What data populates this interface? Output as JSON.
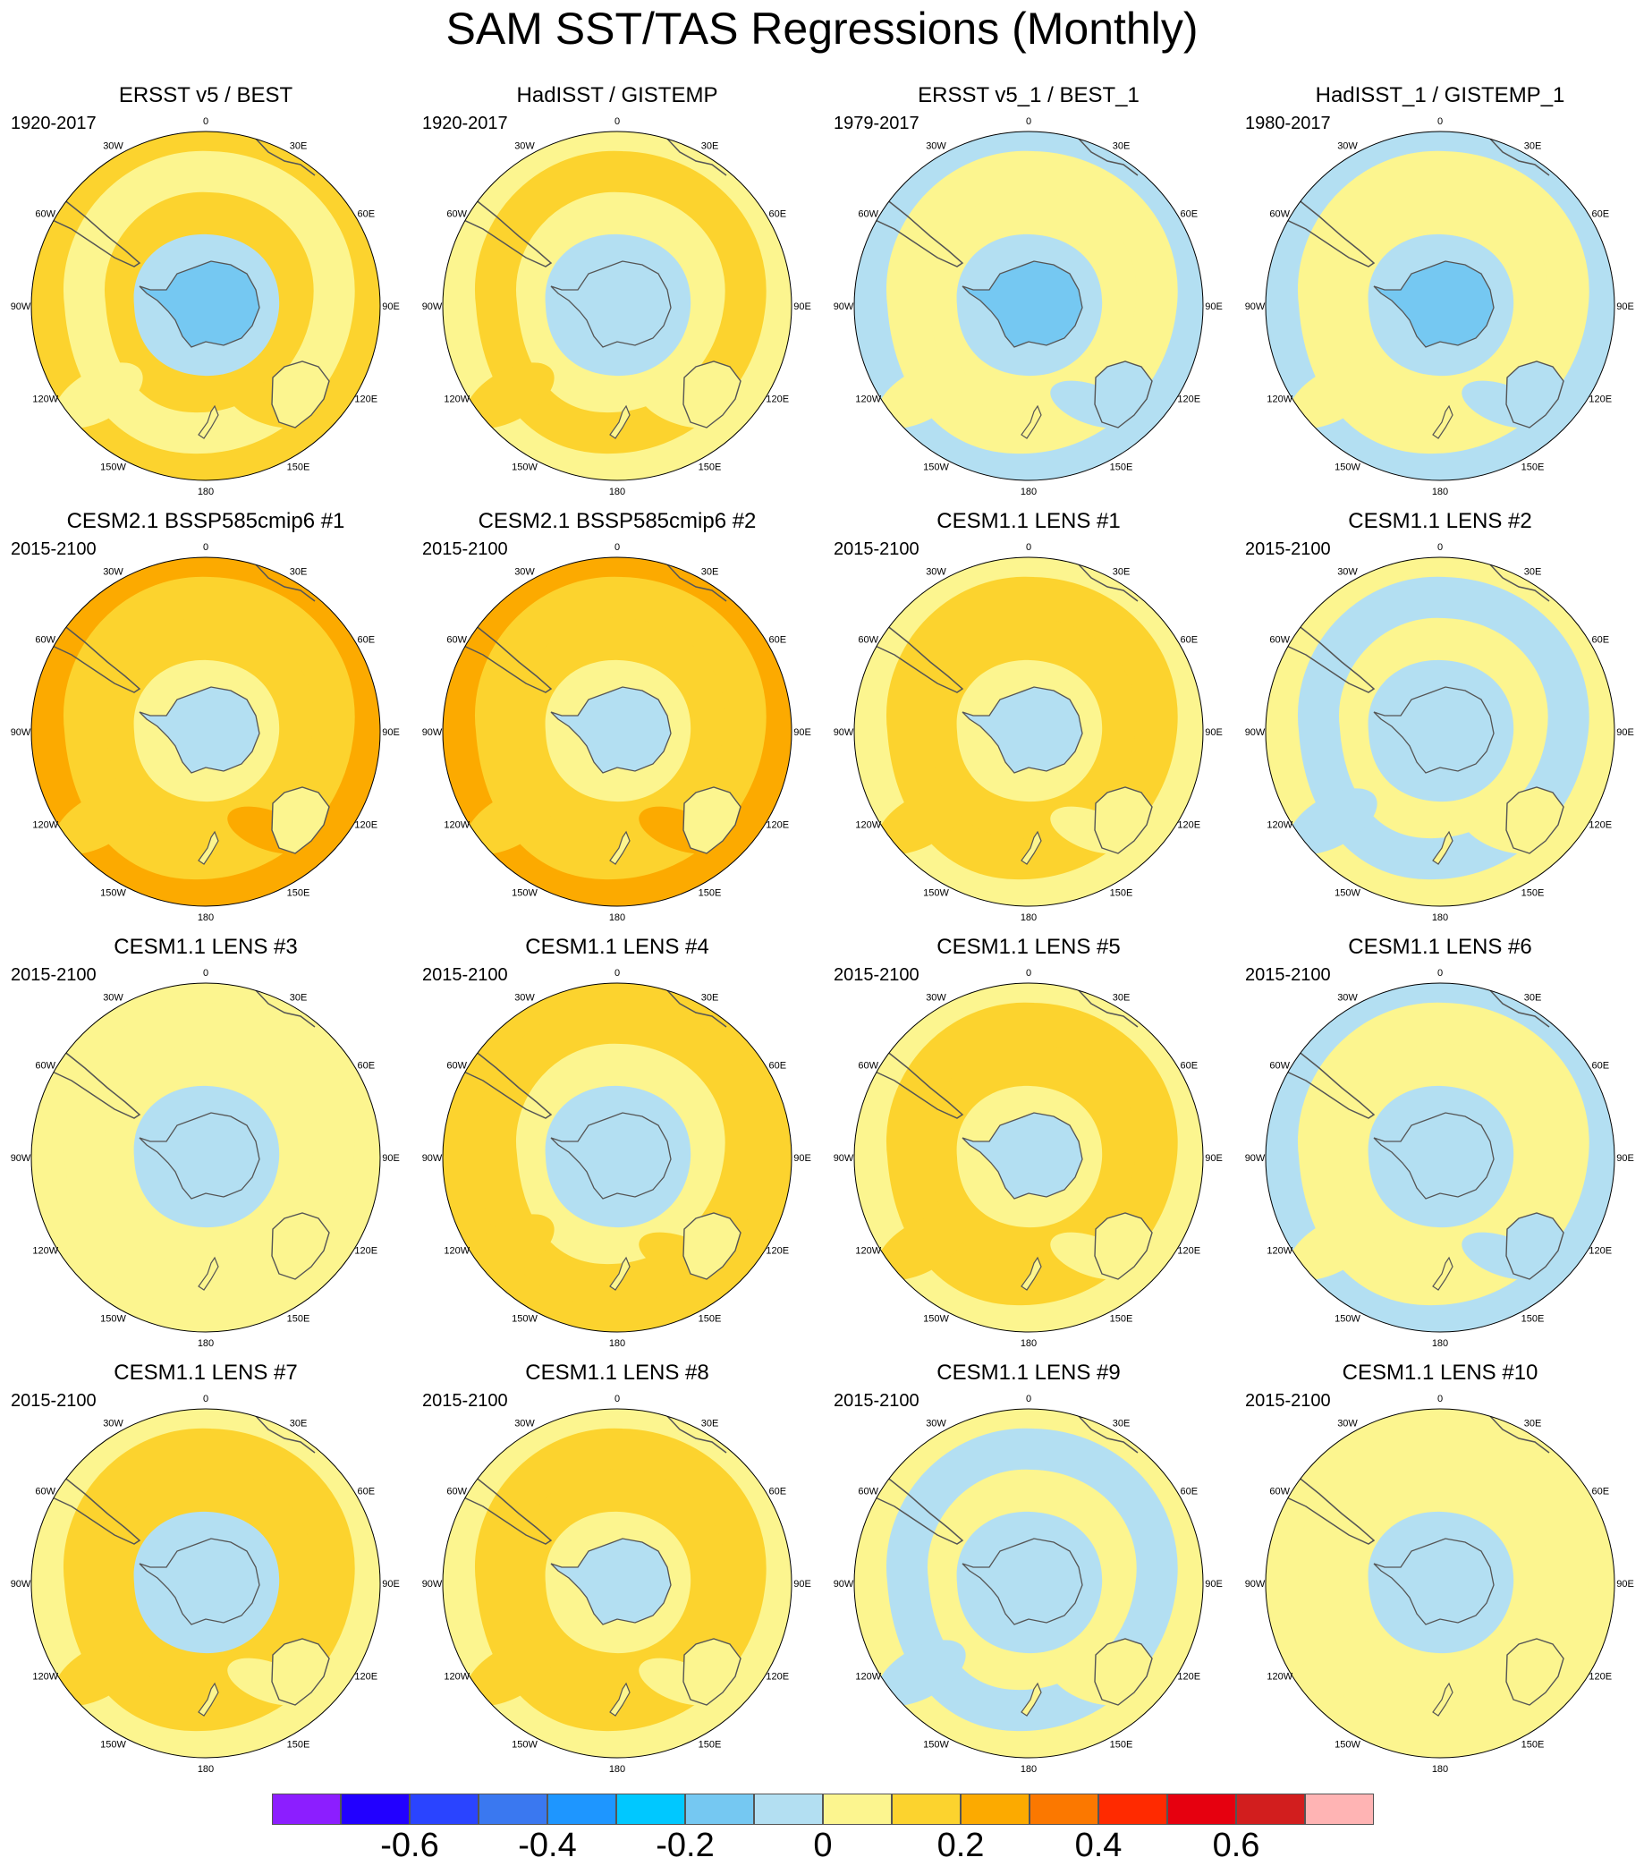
{
  "title": "SAM SST/TAS Regressions (Monthly)",
  "lon_labels": [
    "0",
    "30E",
    "60E",
    "90E",
    "120E",
    "150E",
    "180",
    "150W",
    "120W",
    "90W",
    "60W",
    "30W"
  ],
  "palette": {
    "neg_strong": "#75c8f2",
    "neg_weak": "#b3dff2",
    "zero": "#fcf58f",
    "pos_weak": "#fcd32e",
    "pos_mid": "#fcaa00",
    "pos_strong": "#fb7800",
    "pos_peak": "#ff2a00",
    "land_line": "#555555"
  },
  "panels": [
    {
      "title": "ERSST v5 / BEST",
      "period": "1920-2017",
      "bg": "pos_weak",
      "ring": "zero",
      "ring_fill": null,
      "inner": "neg_weak",
      "center": "neg_strong"
    },
    {
      "title": "HadISST / GISTEMP",
      "period": "1920-2017",
      "bg": "zero",
      "ring": "pos_weak",
      "ring_fill": null,
      "inner": "neg_weak",
      "center": "neg_weak"
    },
    {
      "title": "ERSST v5_1 / BEST_1",
      "period": "1979-2017",
      "bg": "neg_weak",
      "ring": "zero",
      "ring_fill": "zero",
      "inner": "neg_weak",
      "center": "neg_strong"
    },
    {
      "title": "HadISST_1 / GISTEMP_1",
      "period": "1980-2017",
      "bg": "neg_weak",
      "ring": "zero",
      "ring_fill": "zero",
      "inner": "neg_weak",
      "center": "neg_strong"
    },
    {
      "title": "CESM2.1 BSSP585cmip6 #1",
      "period": "2015-2100",
      "bg": "pos_mid",
      "ring": "pos_weak",
      "ring_fill": "pos_weak",
      "inner": "zero",
      "center": "neg_weak"
    },
    {
      "title": "CESM2.1 BSSP585cmip6 #2",
      "period": "2015-2100",
      "bg": "pos_mid",
      "ring": "pos_weak",
      "ring_fill": "pos_weak",
      "inner": "zero",
      "center": "neg_weak"
    },
    {
      "title": "CESM1.1 LENS #1",
      "period": "2015-2100",
      "bg": "zero",
      "ring": "pos_weak",
      "ring_fill": "pos_weak",
      "inner": "zero",
      "center": "neg_weak"
    },
    {
      "title": "CESM1.1 LENS #2",
      "period": "2015-2100",
      "bg": "zero",
      "ring": "neg_weak",
      "ring_fill": "zero",
      "inner": "neg_weak",
      "center": "neg_weak"
    },
    {
      "title": "CESM1.1 LENS #3",
      "period": "2015-2100",
      "bg": "zero",
      "ring": "zero",
      "ring_fill": "zero",
      "inner": "neg_weak",
      "center": "neg_weak"
    },
    {
      "title": "CESM1.1 LENS #4",
      "period": "2015-2100",
      "bg": "pos_weak",
      "ring": "pos_weak",
      "ring_fill": "zero",
      "inner": "neg_weak",
      "center": "neg_weak"
    },
    {
      "title": "CESM1.1 LENS #5",
      "period": "2015-2100",
      "bg": "zero",
      "ring": "pos_weak",
      "ring_fill": "pos_weak",
      "inner": "zero",
      "center": "neg_weak"
    },
    {
      "title": "CESM1.1 LENS #6",
      "period": "2015-2100",
      "bg": "neg_weak",
      "ring": "zero",
      "ring_fill": "zero",
      "inner": "neg_weak",
      "center": "neg_weak"
    },
    {
      "title": "CESM1.1 LENS #7",
      "period": "2015-2100",
      "bg": "zero",
      "ring": "pos_weak",
      "ring_fill": "pos_weak",
      "inner": "neg_weak",
      "center": "neg_weak"
    },
    {
      "title": "CESM1.1 LENS #8",
      "period": "2015-2100",
      "bg": "zero",
      "ring": "pos_weak",
      "ring_fill": "pos_weak",
      "inner": "zero",
      "center": "neg_weak"
    },
    {
      "title": "CESM1.1 LENS #9",
      "period": "2015-2100",
      "bg": "zero",
      "ring": "neg_weak",
      "ring_fill": "zero",
      "inner": "neg_weak",
      "center": "neg_weak"
    },
    {
      "title": "CESM1.1 LENS #10",
      "period": "2015-2100",
      "bg": "zero",
      "ring": "zero",
      "ring_fill": "zero",
      "inner": "neg_weak",
      "center": "neg_weak"
    }
  ],
  "colorbar": {
    "colors": [
      "#8c1eff",
      "#2200ff",
      "#2a44ff",
      "#3a78f0",
      "#1e96ff",
      "#00c8ff",
      "#75c8f2",
      "#b3dff2",
      "#fcf58f",
      "#fcd32e",
      "#fcaa00",
      "#fb7800",
      "#ff2a00",
      "#e6000f",
      "#d21e1e",
      "#ffb4b4"
    ],
    "labels": [
      "-0.6",
      "-0.4",
      "-0.2",
      "0",
      "0.2",
      "0.4",
      "0.6"
    ]
  }
}
